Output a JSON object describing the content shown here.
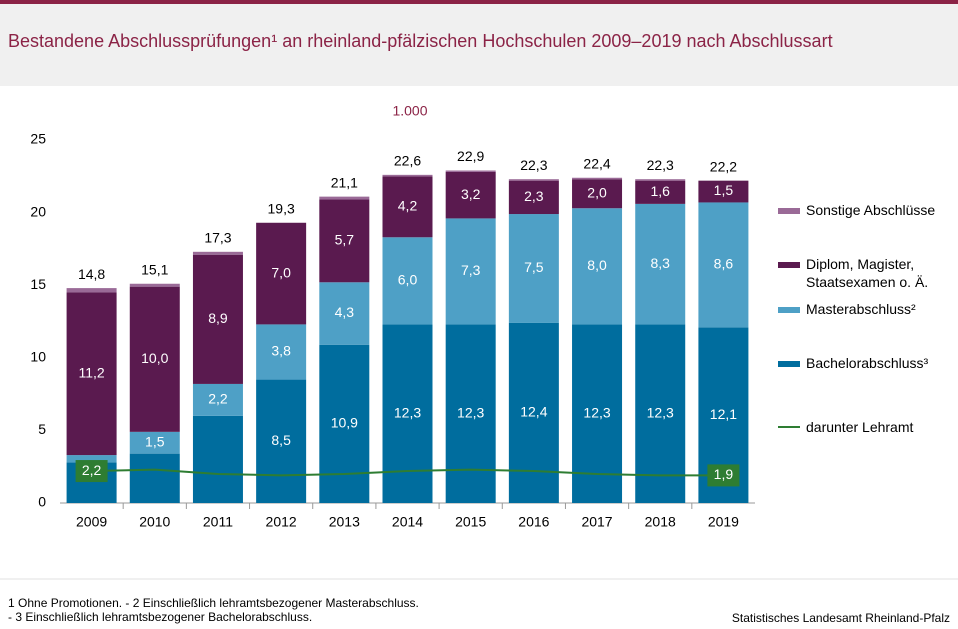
{
  "chart_data": {
    "type": "stacked-bar-line",
    "title": "Bestandene Abschlussprüfungen¹ an rheinland-pfälzischen Hochschulen 2009–2019 nach Abschlussart",
    "unit_label": "1.000",
    "categories": [
      "2009",
      "2010",
      "2011",
      "2012",
      "2013",
      "2014",
      "2015",
      "2016",
      "2017",
      "2018",
      "2019"
    ],
    "series": [
      {
        "name": "Bachelorabschluss³",
        "color": "#006d9e",
        "values": [
          2.8,
          3.4,
          6.0,
          8.5,
          10.9,
          12.3,
          12.3,
          12.4,
          12.3,
          12.3,
          12.1
        ],
        "value_labels": [
          null,
          null,
          null,
          "8,5",
          "10,9",
          "12,3",
          "12,3",
          "12,4",
          "12,3",
          "12,3",
          "12,1"
        ]
      },
      {
        "name": "Masterabschluss²",
        "color": "#4ea0c6",
        "values": [
          0.5,
          1.5,
          2.2,
          3.8,
          4.3,
          6.0,
          7.3,
          7.5,
          8.0,
          8.3,
          8.6
        ],
        "value_labels": [
          null,
          "1,5",
          "2,2",
          "3,8",
          "4,3",
          "6,0",
          "7,3",
          "7,5",
          "8,0",
          "8,3",
          "8,6"
        ]
      },
      {
        "name": "Diplom, Magister, Staatsexamen o. Ä.",
        "color": "#5a1a4f",
        "values": [
          11.2,
          10.0,
          8.9,
          7.0,
          5.7,
          4.2,
          3.2,
          2.3,
          2.0,
          1.6,
          1.5
        ],
        "value_labels": [
          "11,2",
          "10,0",
          "8,9",
          "7,0",
          "5,7",
          "4,2",
          "3,2",
          "2,3",
          "2,0",
          "1,6",
          "1,5"
        ]
      },
      {
        "name": "Sonstige Abschlüsse",
        "color": "#9a6a97",
        "values": [
          0.3,
          0.2,
          0.2,
          0.0,
          0.2,
          0.1,
          0.1,
          0.1,
          0.1,
          0.1,
          0.0
        ]
      }
    ],
    "totals": {
      "values": [
        14.8,
        15.1,
        17.3,
        19.3,
        21.1,
        22.6,
        22.9,
        22.3,
        22.4,
        22.3,
        22.2
      ],
      "value_labels": [
        "14,8",
        "15,1",
        "17,3",
        "19,3",
        "21,1",
        "22,6",
        "22,9",
        "22,3",
        "22,4",
        "22,3",
        "22,2"
      ]
    },
    "line": {
      "name": "darunter Lehramt",
      "color": "#2e7d32",
      "values": [
        2.2,
        2.3,
        2.0,
        1.9,
        2.0,
        2.2,
        2.3,
        2.2,
        2.0,
        1.9,
        1.9
      ],
      "value_labels": [
        "2,2",
        null,
        null,
        null,
        null,
        null,
        null,
        null,
        null,
        null,
        "1,9"
      ]
    },
    "ylim": [
      0,
      25
    ],
    "yticks": [
      0,
      5,
      10,
      15,
      20,
      25
    ],
    "footnotes": [
      "1 Ohne Promotionen.  - 2 Einschließlich lehramtsbezogener  Masterabschluss.",
      "- 3 Einschließlich lehramtsbezogener  Bachelorabschluss."
    ],
    "source": "Statistisches Landesamt Rheinland-Pfalz"
  }
}
